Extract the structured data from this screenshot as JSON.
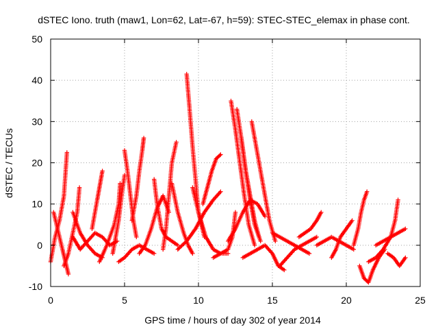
{
  "chart_data": {
    "type": "scatter",
    "title": "dSTEC Iono. truth (maw1, Lon=62, Lat=-67, h=59): STEC-STEC_elemax in phase cont.",
    "xlabel": "GPS time / hours of day 302 of year 2014",
    "ylabel": "dSTEC  / TECUs",
    "xlim": [
      0,
      25
    ],
    "ylim": [
      -10,
      50
    ],
    "xticks": [
      0,
      5,
      10,
      15,
      20,
      25
    ],
    "yticks": [
      -10,
      0,
      10,
      20,
      30,
      40,
      50
    ],
    "grid": true,
    "marker": "plus",
    "color": "#ff0000",
    "series": [
      {
        "x": [
          0.0,
          0.3,
          0.6,
          0.9,
          1.1
        ],
        "y": [
          -4,
          2,
          6,
          12,
          22.5
        ]
      },
      {
        "x": [
          0.2,
          0.4,
          0.6,
          0.8,
          1.0,
          1.2
        ],
        "y": [
          8,
          5,
          2,
          -1,
          -4,
          -7
        ]
      },
      {
        "x": [
          0.9,
          1.2,
          1.5,
          1.8,
          1.95
        ],
        "y": [
          -5,
          -2,
          3,
          8,
          14
        ]
      },
      {
        "x": [
          1.5,
          2.0,
          2.5,
          3.0,
          3.5
        ],
        "y": [
          8,
          3,
          0,
          -2,
          -3
        ]
      },
      {
        "x": [
          2.8,
          3.0,
          3.2,
          3.4,
          3.5
        ],
        "y": [
          4,
          8,
          12,
          16,
          18
        ]
      },
      {
        "x": [
          3.3,
          3.8,
          4.3,
          4.6,
          4.7
        ],
        "y": [
          -4,
          0,
          5,
          10,
          15
        ]
      },
      {
        "x": [
          4.2,
          4.4,
          4.6,
          4.8,
          5.0
        ],
        "y": [
          -2,
          2,
          6,
          12,
          17
        ]
      },
      {
        "x": [
          4.6,
          5.0,
          5.5,
          6.0,
          6.5,
          7.0
        ],
        "y": [
          -4,
          -3,
          -1,
          0,
          -1,
          -2
        ]
      },
      {
        "x": [
          5.0,
          5.2,
          5.4,
          5.6,
          5.8
        ],
        "y": [
          23,
          18,
          12,
          6,
          2
        ]
      },
      {
        "x": [
          5.5,
          5.8,
          6.0,
          6.2,
          6.3
        ],
        "y": [
          6,
          12,
          18,
          23,
          26
        ]
      },
      {
        "x": [
          6.0,
          6.4,
          6.8,
          7.2,
          7.6,
          8.0
        ],
        "y": [
          -2,
          0,
          4,
          9,
          12,
          8
        ]
      },
      {
        "x": [
          7.0,
          7.2,
          7.5,
          7.8,
          8.2,
          8.6
        ],
        "y": [
          16,
          10,
          4,
          2,
          1,
          0
        ]
      },
      {
        "x": [
          7.6,
          7.8,
          8.0,
          8.2,
          8.5
        ],
        "y": [
          -1,
          4,
          12,
          20,
          25
        ]
      },
      {
        "x": [
          8.2,
          8.6,
          9.0,
          9.3,
          9.6
        ],
        "y": [
          15,
          8,
          3,
          0,
          -2
        ]
      },
      {
        "x": [
          9.2,
          9.4,
          9.6,
          9.8,
          10.0,
          10.4
        ],
        "y": [
          41.5,
          33,
          24,
          16,
          8,
          2
        ]
      },
      {
        "x": [
          8.6,
          9.2,
          9.8,
          10.4,
          11.0,
          11.5
        ],
        "y": [
          -1,
          1,
          4,
          8,
          11,
          13
        ]
      },
      {
        "x": [
          9.6,
          10.0,
          10.5,
          11.0,
          11.5,
          12.0
        ],
        "y": [
          14,
          8,
          2,
          -1,
          -2,
          -2
        ]
      },
      {
        "x": [
          10.3,
          10.6,
          10.9,
          11.2,
          11.5
        ],
        "y": [
          10,
          14,
          18,
          21,
          22
        ]
      },
      {
        "x": [
          11.0,
          11.5,
          12.0,
          12.3,
          12.5
        ],
        "y": [
          -3,
          -2,
          -1,
          2,
          8
        ]
      },
      {
        "x": [
          12.2,
          12.5,
          12.8,
          13.1,
          13.4,
          13.8
        ],
        "y": [
          35,
          28,
          20,
          12,
          5,
          0
        ]
      },
      {
        "x": [
          12.6,
          12.9,
          13.2,
          13.5,
          13.8,
          14.2
        ],
        "y": [
          33,
          26,
          18,
          11,
          5,
          1
        ]
      },
      {
        "x": [
          12.9,
          13.2,
          13.5,
          13.8,
          14.1
        ],
        "y": [
          26,
          18,
          12,
          6,
          2
        ]
      },
      {
        "x": [
          13.6,
          14.0,
          14.4,
          14.8,
          15.2
        ],
        "y": [
          30,
          22,
          14,
          6,
          1
        ]
      },
      {
        "x": [
          12.0,
          12.5,
          13.0,
          13.5,
          14.0,
          14.5
        ],
        "y": [
          1,
          4,
          8,
          11,
          10,
          7
        ]
      },
      {
        "x": [
          13.0,
          13.5,
          14.0,
          14.5,
          15.0,
          15.4,
          15.8
        ],
        "y": [
          -3,
          -2,
          -1,
          0,
          -2,
          -5,
          -6
        ]
      },
      {
        "x": [
          15.5,
          16.0,
          16.5,
          17.0,
          17.5,
          18.0
        ],
        "y": [
          -5,
          -3,
          -1,
          0,
          1,
          2
        ]
      },
      {
        "x": [
          16.8,
          17.2,
          17.6,
          18.0,
          18.3
        ],
        "y": [
          2,
          3,
          4,
          6,
          8
        ]
      },
      {
        "x": [
          18.0,
          18.5,
          19.0,
          19.5,
          20.0,
          20.5
        ],
        "y": [
          0,
          1,
          2,
          1,
          0,
          -1
        ]
      },
      {
        "x": [
          19.0,
          19.3,
          19.6,
          20.0,
          20.4
        ],
        "y": [
          -3,
          -1,
          2,
          4,
          6
        ]
      },
      {
        "x": [
          20.5,
          20.8,
          21.0,
          21.2,
          21.4
        ],
        "y": [
          0,
          4,
          8,
          11,
          13
        ]
      },
      {
        "x": [
          20.9,
          21.2,
          21.5,
          21.8,
          22.2,
          22.6
        ],
        "y": [
          -5,
          -8,
          -9,
          -6,
          -3,
          -1
        ]
      },
      {
        "x": [
          21.5,
          22.0,
          22.5,
          23.0,
          23.3,
          23.5
        ],
        "y": [
          -4,
          -3,
          -1,
          2,
          6,
          11
        ]
      },
      {
        "x": [
          22.0,
          22.5,
          23.0,
          23.5,
          24.0
        ],
        "y": [
          0,
          1,
          2,
          3,
          4
        ]
      },
      {
        "x": [
          22.8,
          23.2,
          23.6,
          24.0
        ],
        "y": [
          -2,
          -3,
          -5,
          -3
        ]
      },
      {
        "x": [
          1.5,
          2.0,
          2.5,
          3.0,
          3.5,
          4.0,
          4.5
        ],
        "y": [
          2,
          -1,
          1,
          3,
          2,
          0,
          1
        ]
      },
      {
        "x": [
          15.0,
          15.5,
          16.0,
          16.5,
          17.0,
          17.5
        ],
        "y": [
          3,
          2,
          1,
          0,
          -1,
          -2
        ]
      }
    ]
  }
}
